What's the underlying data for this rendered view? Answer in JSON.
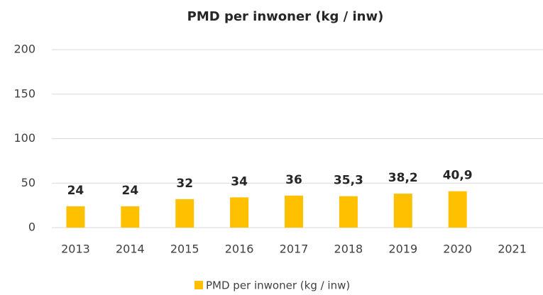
{
  "chart_data": {
    "type": "bar",
    "title": "PMD per inwoner (kg / inw)",
    "categories": [
      "2013",
      "2014",
      "2015",
      "2016",
      "2017",
      "2018",
      "2019",
      "2020",
      "2021"
    ],
    "series": [
      {
        "name": "PMD per inwoner (kg / inw)",
        "color": "#ffc000",
        "values": [
          24,
          24,
          32,
          34,
          36,
          35.3,
          38.2,
          40.9,
          null
        ],
        "value_labels": [
          "24",
          "24",
          "32",
          "34",
          "36",
          "35,3",
          "38,2",
          "40,9",
          null
        ]
      }
    ],
    "ylim": [
      0,
      200
    ],
    "yticks": [
      0,
      50,
      100,
      150,
      200
    ],
    "grid": true,
    "legend": "bottom"
  }
}
